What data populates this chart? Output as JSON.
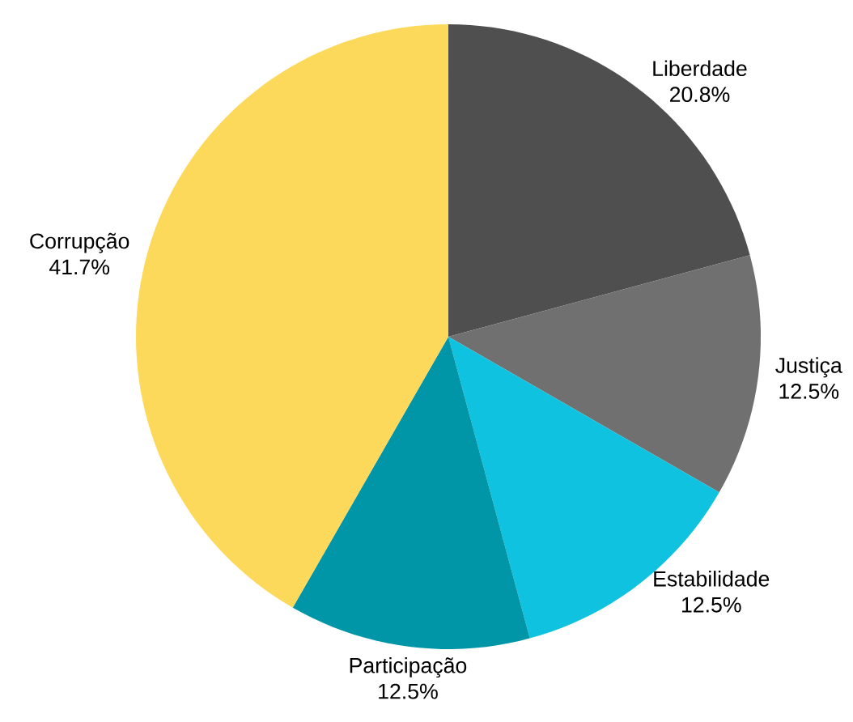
{
  "chart_data": {
    "type": "pie",
    "categories": [
      "Liberdade",
      "Justiça",
      "Estabilidade",
      "Participação",
      "Corrupção"
    ],
    "values": [
      20.8,
      12.5,
      12.5,
      12.5,
      41.7
    ],
    "colors": [
      "#4f4f4f",
      "#707070",
      "#0ec2e0",
      "#0096a8",
      "#fcd95a"
    ],
    "value_labels": [
      "20.8%",
      "12.5%",
      "12.5%",
      "12.5%",
      "41.7%"
    ]
  }
}
